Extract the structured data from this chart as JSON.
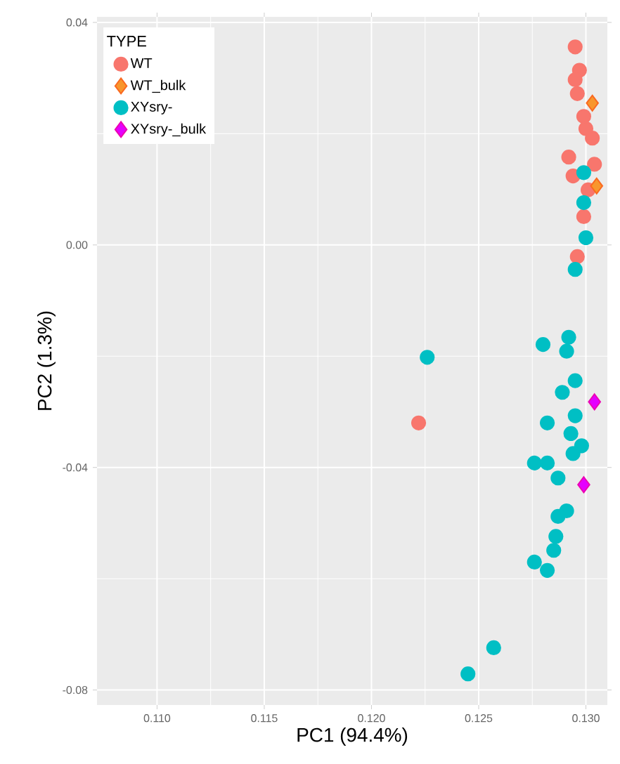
{
  "chart_data": {
    "type": "scatter",
    "xlabel": "PC1 (94.4%)",
    "ylabel": "PC2 (1.3%)",
    "legend_title": "TYPE",
    "legend": "top left",
    "grid": true,
    "xlim": [
      0.1072,
      0.131
    ],
    "ylim": [
      -0.0827,
      0.041
    ],
    "xticks": [
      {
        "value": 0.11,
        "label": "0.110"
      },
      {
        "value": 0.115,
        "label": "0.115"
      },
      {
        "value": 0.12,
        "label": "0.120"
      },
      {
        "value": 0.125,
        "label": "0.125"
      },
      {
        "value": 0.13,
        "label": "0.130"
      }
    ],
    "yticks": [
      {
        "value": -0.08,
        "label": "-0.08"
      },
      {
        "value": -0.04,
        "label": "-0.04"
      },
      {
        "value": 0.0,
        "label": "0.00"
      },
      {
        "value": 0.04,
        "label": "0.04"
      }
    ],
    "series": [
      {
        "name": "WT",
        "color": "#f8766d",
        "marker": "circle",
        "x": [
          0.1295,
          0.1297,
          0.1295,
          0.1296,
          0.1299,
          0.13,
          0.1303,
          0.1292,
          0.1301,
          0.1304,
          0.1294,
          0.1301,
          0.1299,
          0.1296,
          0.1222
        ],
        "values": [
          0.0356,
          0.0314,
          0.0297,
          0.0272,
          0.0231,
          0.0209,
          0.0192,
          0.0158,
          null,
          0.0145,
          0.0124,
          0.0099,
          0.0051,
          -0.0021,
          -0.032
        ]
      },
      {
        "name": "WT_bulk",
        "color": "#f8962d",
        "marker": "diamond",
        "x": [
          0.1303,
          0.1305
        ],
        "values": [
          0.0255,
          0.0106
        ]
      },
      {
        "name": "XYsry-",
        "color": "#00bfc4",
        "marker": "circle",
        "x": [
          0.1299,
          0.1299,
          0.13,
          0.1295,
          0.1226,
          0.128,
          0.1292,
          0.1291,
          0.1295,
          0.1289,
          0.1282,
          0.1295,
          0.1293,
          0.1298,
          0.1294,
          0.1276,
          0.1282,
          0.1287,
          0.1291,
          0.1287,
          0.1286,
          0.1285,
          0.1276,
          0.1282,
          0.1257,
          0.1245
        ],
        "values": [
          0.013,
          0.0076,
          0.0013,
          -0.0044,
          -0.0202,
          -0.0179,
          -0.0166,
          -0.0191,
          -0.0244,
          -0.0265,
          -0.032,
          -0.0307,
          -0.0339,
          -0.0361,
          -0.0375,
          -0.0392,
          -0.0392,
          -0.0419,
          -0.0478,
          -0.0488,
          -0.0524,
          -0.0549,
          -0.057,
          -0.0585,
          -0.0724,
          -0.0771
        ]
      },
      {
        "name": "XYsry-_bulk",
        "color": "#e400ff",
        "marker": "diamond",
        "x": [
          0.1304,
          0.1299
        ],
        "values": [
          -0.0282,
          -0.0431
        ]
      }
    ]
  }
}
